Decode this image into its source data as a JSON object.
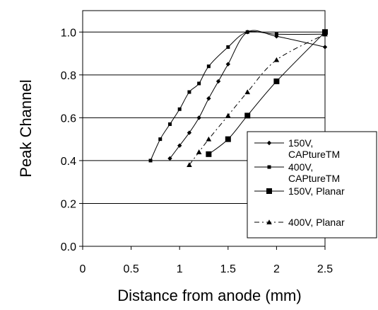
{
  "chart_data": {
    "type": "line",
    "xlabel": "Distance from anode (mm)",
    "ylabel": "Peak Channel",
    "xlim": [
      0,
      2.5
    ],
    "ylim": [
      0,
      1.1
    ],
    "x_ticks": [
      "0",
      "0.5",
      "1",
      "1.5",
      "2",
      "2.5"
    ],
    "y_ticks": [
      "0.0",
      "0.2",
      "0.4",
      "0.6",
      "0.8",
      "1.0"
    ],
    "grid": "horizontal",
    "legend_placement": "bottom-right",
    "series": [
      {
        "name_lines": [
          "150V,",
          "CAPtureTM"
        ],
        "marker": "diamond",
        "line": "solid",
        "color": "#000000",
        "x": [
          0.9,
          1.0,
          1.1,
          1.2,
          1.3,
          1.4,
          1.5,
          1.7,
          2.0,
          2.5
        ],
        "y": [
          0.41,
          0.47,
          0.53,
          0.6,
          0.69,
          0.77,
          0.85,
          1.0,
          0.98,
          0.93
        ]
      },
      {
        "name_lines": [
          "400V,",
          "CAPtureTM"
        ],
        "marker": "small-square",
        "line": "solid",
        "color": "#000000",
        "x": [
          0.7,
          0.8,
          0.9,
          1.0,
          1.1,
          1.2,
          1.3,
          1.5,
          1.7,
          2.0,
          2.5
        ],
        "y": [
          0.4,
          0.5,
          0.57,
          0.64,
          0.72,
          0.76,
          0.84,
          0.93,
          1.0,
          0.99,
          0.99
        ]
      },
      {
        "name_lines": [
          "150V, Planar"
        ],
        "marker": "square",
        "line": "solid",
        "color": "#000000",
        "x": [
          1.3,
          1.5,
          1.7,
          2.0,
          2.5
        ],
        "y": [
          0.43,
          0.5,
          0.61,
          0.77,
          1.0
        ]
      },
      {
        "name_lines": [
          "400V, Planar"
        ],
        "marker": "triangle",
        "line": "dashdot",
        "color": "#000000",
        "x": [
          1.1,
          1.2,
          1.3,
          1.5,
          1.7,
          2.0,
          2.5
        ],
        "y": [
          0.38,
          0.44,
          0.5,
          0.61,
          0.72,
          0.87,
          0.99
        ]
      }
    ]
  }
}
